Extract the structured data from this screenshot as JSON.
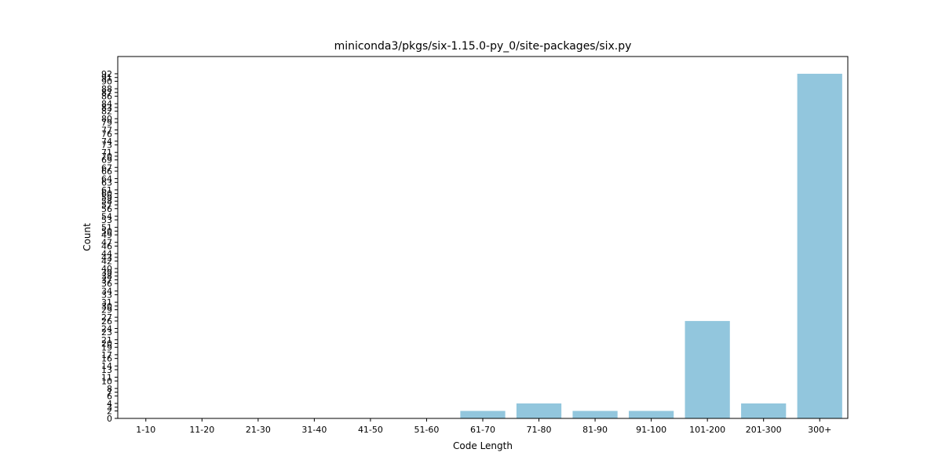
{
  "chart_data": {
    "type": "bar",
    "title": "miniconda3/pkgs/six-1.15.0-py_0/site-packages/six.py",
    "xlabel": "Code Length",
    "ylabel": "Count",
    "categories": [
      "1-10",
      "11-20",
      "21-30",
      "31-40",
      "41-50",
      "51-60",
      "61-70",
      "71-80",
      "81-90",
      "91-100",
      "101-200",
      "201-300",
      "300+"
    ],
    "values": [
      0,
      0,
      0,
      0,
      0,
      0,
      2,
      4,
      2,
      2,
      26,
      4,
      92
    ],
    "yticks": [
      0,
      2,
      3,
      4,
      6,
      7,
      8,
      10,
      11,
      13,
      14,
      16,
      17,
      19,
      20,
      21,
      23,
      24,
      26,
      27,
      29,
      30,
      31,
      33,
      34,
      36,
      37,
      38,
      39,
      40,
      42,
      43,
      44,
      46,
      47,
      49,
      50,
      51,
      53,
      54,
      56,
      57,
      58,
      59,
      60,
      61,
      63,
      64,
      66,
      67,
      69,
      70,
      71,
      73,
      74,
      76,
      77,
      79,
      80,
      82,
      83,
      84,
      86,
      87,
      88,
      90,
      91,
      92
    ],
    "ylim": [
      0,
      96.6
    ],
    "bar_color": "#92c6dd",
    "grid": false
  }
}
